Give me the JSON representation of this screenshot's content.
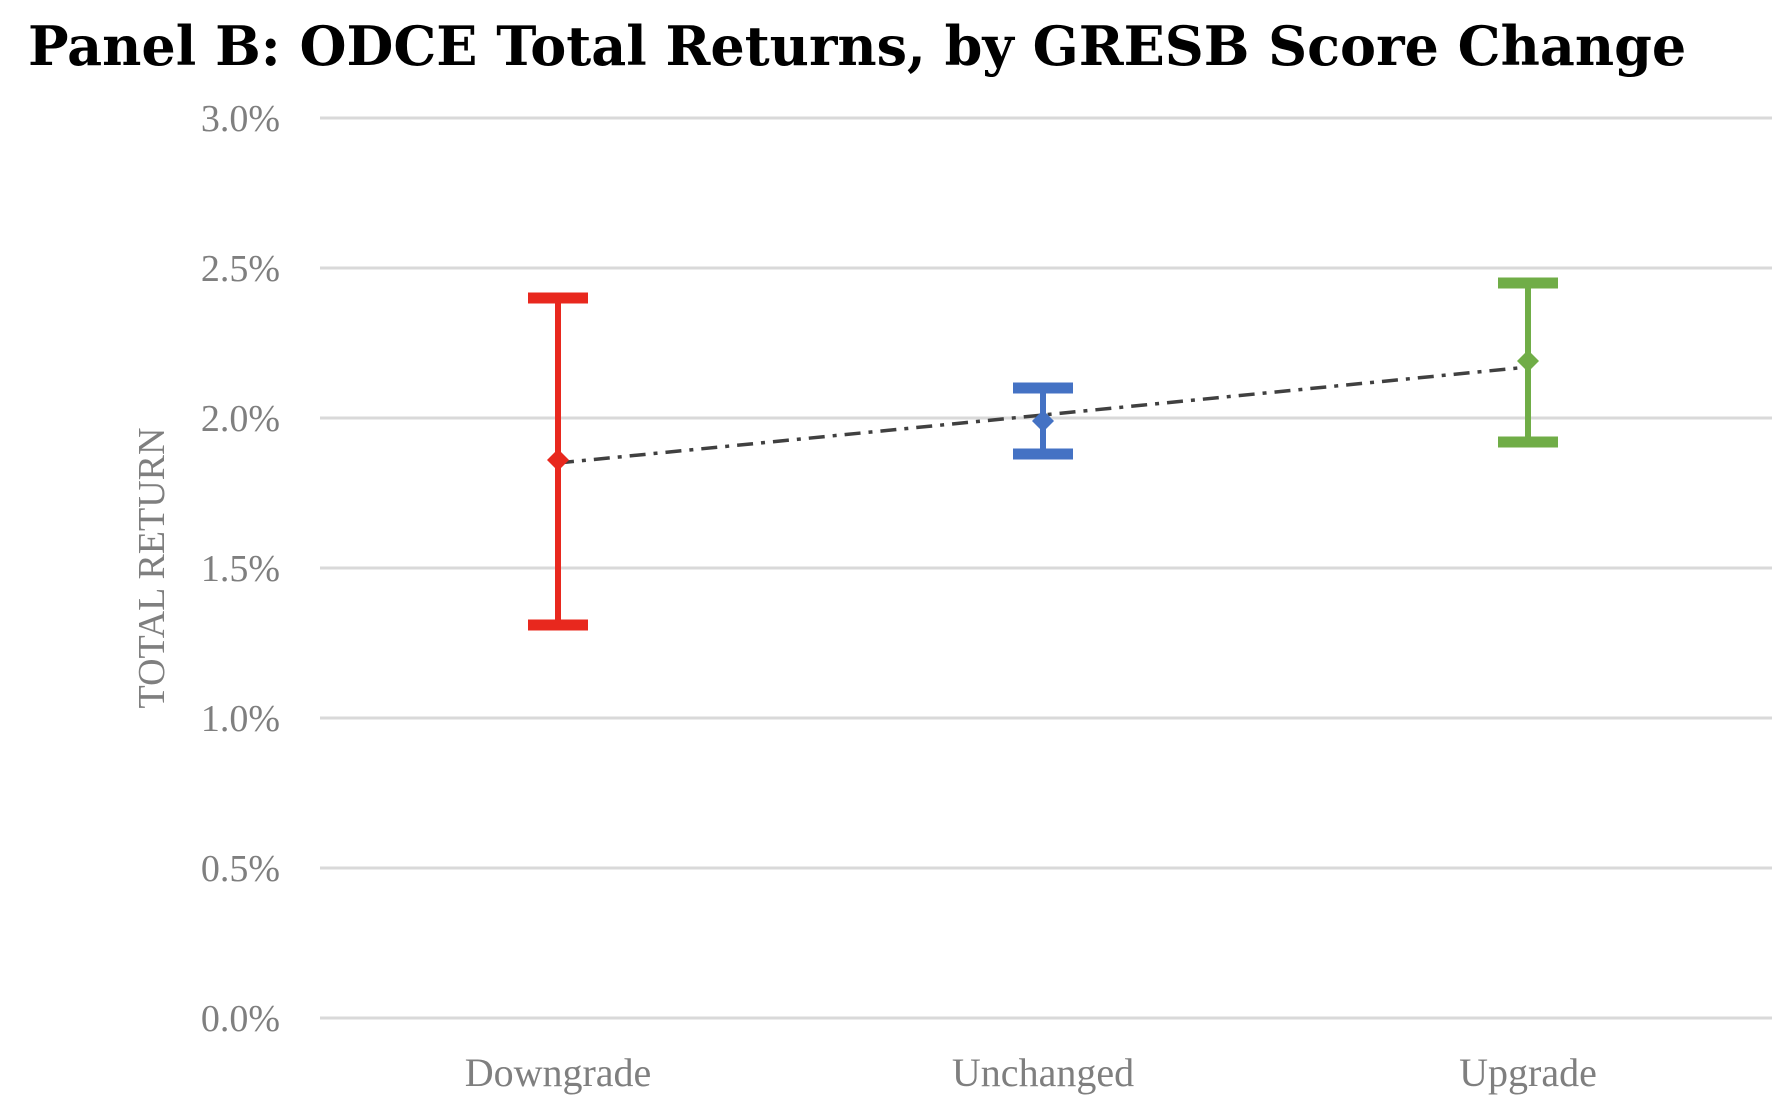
{
  "page": {
    "title": "Panel B: ODCE Total Returns, by GRESB Score Change"
  },
  "chart_data": {
    "type": "scatter",
    "title": "Panel B: ODCE Total Returns, by GRESB Score Change",
    "xlabel": "",
    "ylabel": "TOTAL RETURN",
    "ylim": [
      0,
      3.0
    ],
    "yticks": [
      0.0,
      0.5,
      1.0,
      1.5,
      2.0,
      2.5,
      3.0
    ],
    "ytick_labels": [
      "0.0%",
      "0.5%",
      "1.0%",
      "1.5%",
      "2.0%",
      "2.5%",
      "3.0%"
    ],
    "categories": [
      "Downgrade",
      "Unchanged",
      "Upgrade"
    ],
    "points": [
      {
        "category": "Downgrade",
        "value": 1.86,
        "low": 1.31,
        "high": 2.4,
        "color": "#e8281e"
      },
      {
        "category": "Unchanged",
        "value": 1.99,
        "low": 1.88,
        "high": 2.1,
        "color": "#4472c4"
      },
      {
        "category": "Upgrade",
        "value": 2.19,
        "low": 1.92,
        "high": 2.45,
        "color": "#70ad47"
      }
    ],
    "trendline": {
      "style": "dash-dot",
      "color": "#404040",
      "start": 1.85,
      "end": 2.17
    },
    "grid": true,
    "legend": "none"
  }
}
